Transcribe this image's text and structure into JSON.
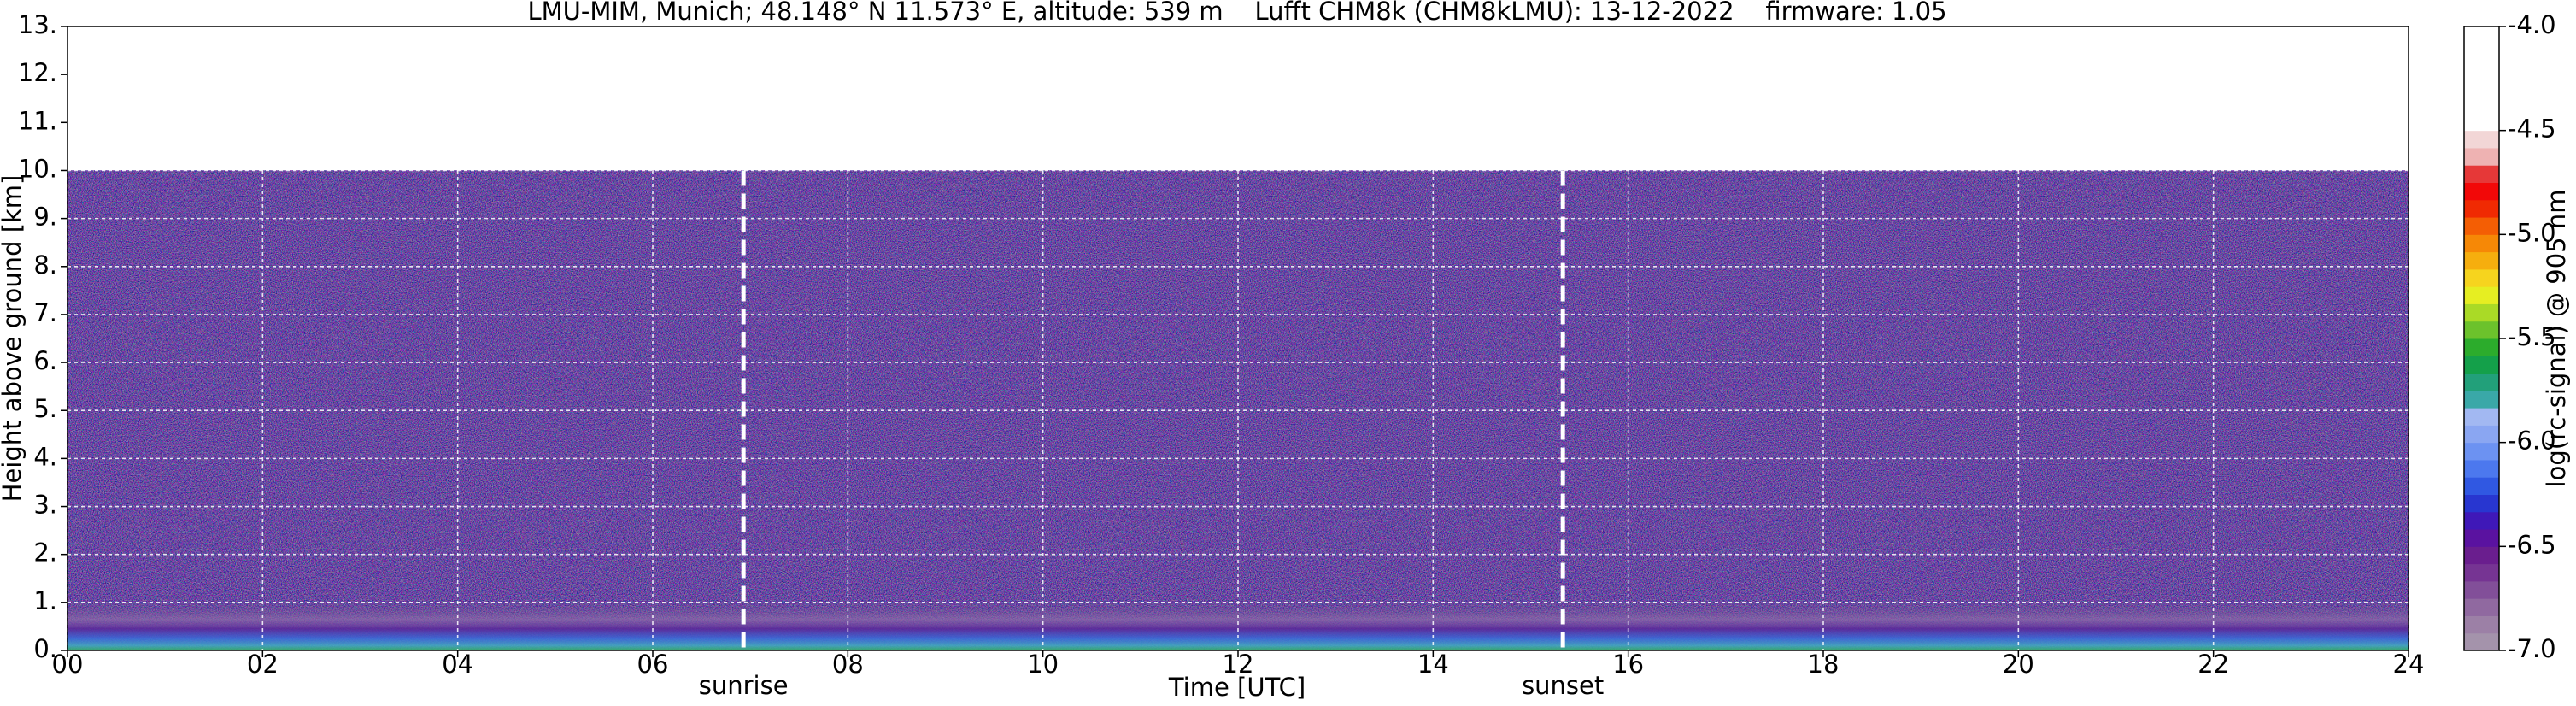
{
  "chart_data": {
    "type": "heatmap",
    "title": "LMU-MIM, Munich; 48.148° N 11.573° E, altitude: 539 m    Lufft CHM8k (CHM8kLMU): 13-12-2022    firmware: 1.05",
    "x_label": "Time [UTC]",
    "y_label": "Height above ground [km]",
    "xlim": [
      0,
      24
    ],
    "xticks": [
      {
        "value": 0,
        "label": "00"
      },
      {
        "value": 2,
        "label": "02"
      },
      {
        "value": 4,
        "label": "04"
      },
      {
        "value": 6,
        "label": "06"
      },
      {
        "value": 8,
        "label": "08"
      },
      {
        "value": 10,
        "label": "10"
      },
      {
        "value": 12,
        "label": "12"
      },
      {
        "value": 14,
        "label": "14"
      },
      {
        "value": 16,
        "label": "16"
      },
      {
        "value": 18,
        "label": "18"
      },
      {
        "value": 20,
        "label": "20"
      },
      {
        "value": 22,
        "label": "22"
      },
      {
        "value": 24,
        "label": "24"
      }
    ],
    "ylim": [
      0,
      13
    ],
    "yticks": [
      {
        "value": 0,
        "label": "0."
      },
      {
        "value": 1,
        "label": "1."
      },
      {
        "value": 2,
        "label": "2."
      },
      {
        "value": 3,
        "label": "3."
      },
      {
        "value": 4,
        "label": "4."
      },
      {
        "value": 5,
        "label": "5."
      },
      {
        "value": 6,
        "label": "6."
      },
      {
        "value": 7,
        "label": "7."
      },
      {
        "value": 8,
        "label": "8."
      },
      {
        "value": 9,
        "label": "9."
      },
      {
        "value": 10,
        "label": "10."
      },
      {
        "value": 11,
        "label": "11."
      },
      {
        "value": 12,
        "label": "12."
      },
      {
        "value": 13,
        "label": "13."
      }
    ],
    "grid": true,
    "annotations": [
      {
        "text": "sunrise",
        "x": 6.93
      },
      {
        "text": "sunset",
        "x": 15.33
      }
    ],
    "colorbar": {
      "label": "log(rc-signal) @ 905 nm",
      "lim": [
        -7,
        -4
      ],
      "ticks": [
        {
          "value": -4,
          "label": "-4.0"
        },
        {
          "value": -4.5,
          "label": "-4.5"
        },
        {
          "value": -5,
          "label": "-5.0"
        },
        {
          "value": -5.5,
          "label": "-5.5"
        },
        {
          "value": -6,
          "label": "-6.0"
        },
        {
          "value": -6.5,
          "label": "-6.5"
        },
        {
          "value": -7,
          "label": "-7.0"
        }
      ],
      "colors": [
        "#a493ab",
        "#9c80a6",
        "#9069a0",
        "#824f99",
        "#763493",
        "#6a1e8e",
        "#5a12a0",
        "#3f18b8",
        "#2836d0",
        "#3058e2",
        "#4c78ee",
        "#6c92f2",
        "#8aa6f2",
        "#a2b8f2",
        "#3aa8a8",
        "#22a07a",
        "#14a04a",
        "#2cac2c",
        "#6cc22c",
        "#aada26",
        "#e6ee22",
        "#f6d41e",
        "#f6ae0e",
        "#f68806",
        "#f45e04",
        "#f02a02",
        "#f20808",
        "#e63838",
        "#eeb2b2",
        "#f2d6d6",
        "#ffffff",
        "#ffffff",
        "#ffffff",
        "#ffffff",
        "#ffffff",
        "#ffffff"
      ]
    }
  }
}
